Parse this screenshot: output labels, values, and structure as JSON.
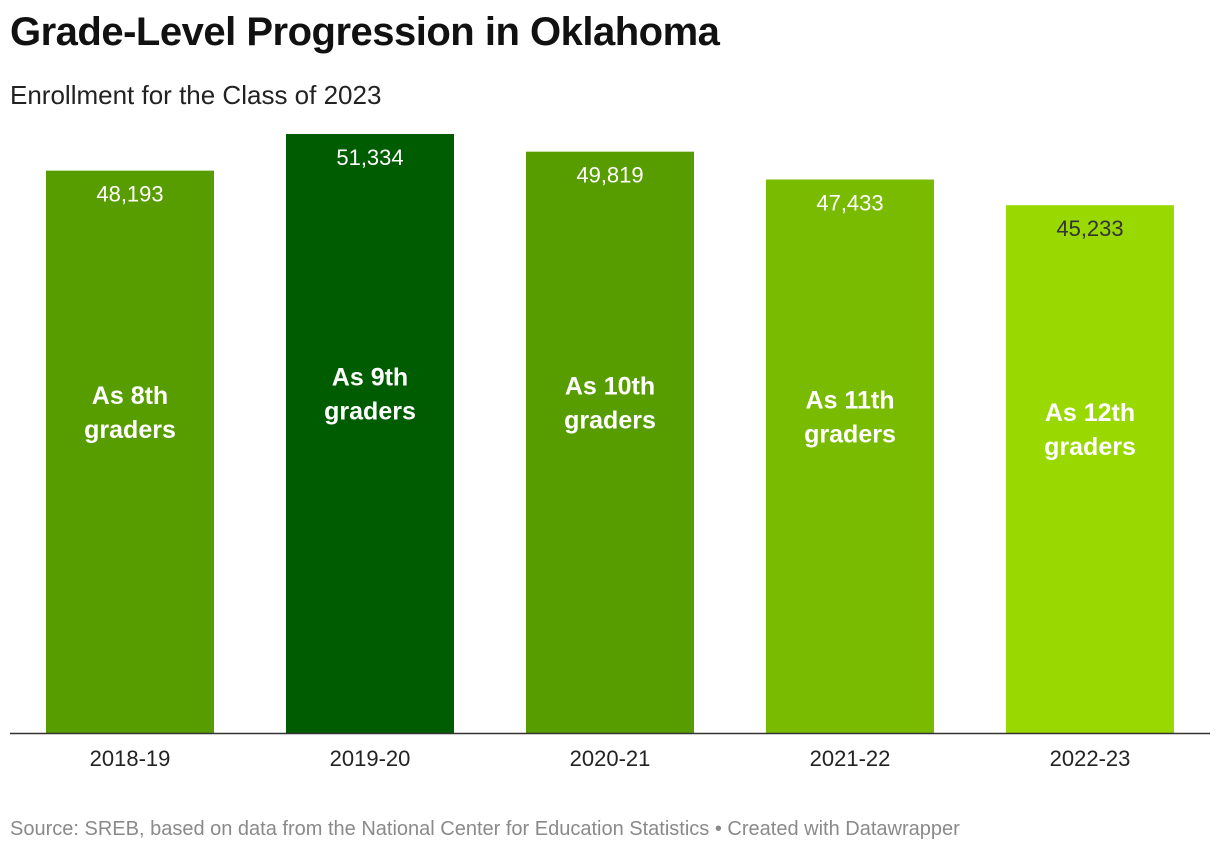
{
  "header": {
    "title": "Grade-Level Progression in Oklahoma",
    "subtitle": "Enrollment for the Class of 2023"
  },
  "footer": {
    "source_label": "Source:",
    "source_text": "SREB, based on data from the National Center for Education Statistics",
    "separator": "•",
    "credit": "Created with Datawrapper"
  },
  "chart_data": {
    "type": "bar",
    "title": "Grade-Level Progression in Oklahoma",
    "subtitle": "Enrollment for the Class of 2023",
    "xlabel": "",
    "ylabel": "",
    "categories": [
      "2018-19",
      "2019-20",
      "2020-21",
      "2021-22",
      "2022-23"
    ],
    "values": [
      48193,
      51334,
      49819,
      47433,
      45233
    ],
    "value_labels": [
      "48,193",
      "51,334",
      "49,819",
      "47,433",
      "45,233"
    ],
    "bar_annotations": [
      [
        "As 8th",
        "graders"
      ],
      [
        "As 9th",
        "graders"
      ],
      [
        "As 10th",
        "graders"
      ],
      [
        "As 11th",
        "graders"
      ],
      [
        "As 12th",
        "graders"
      ]
    ],
    "bar_colors": [
      "#579d00",
      "#005c00",
      "#579d00",
      "#78bb00",
      "#99d800"
    ],
    "ylim": [
      0,
      51334
    ],
    "grid": false,
    "legend": "none"
  }
}
